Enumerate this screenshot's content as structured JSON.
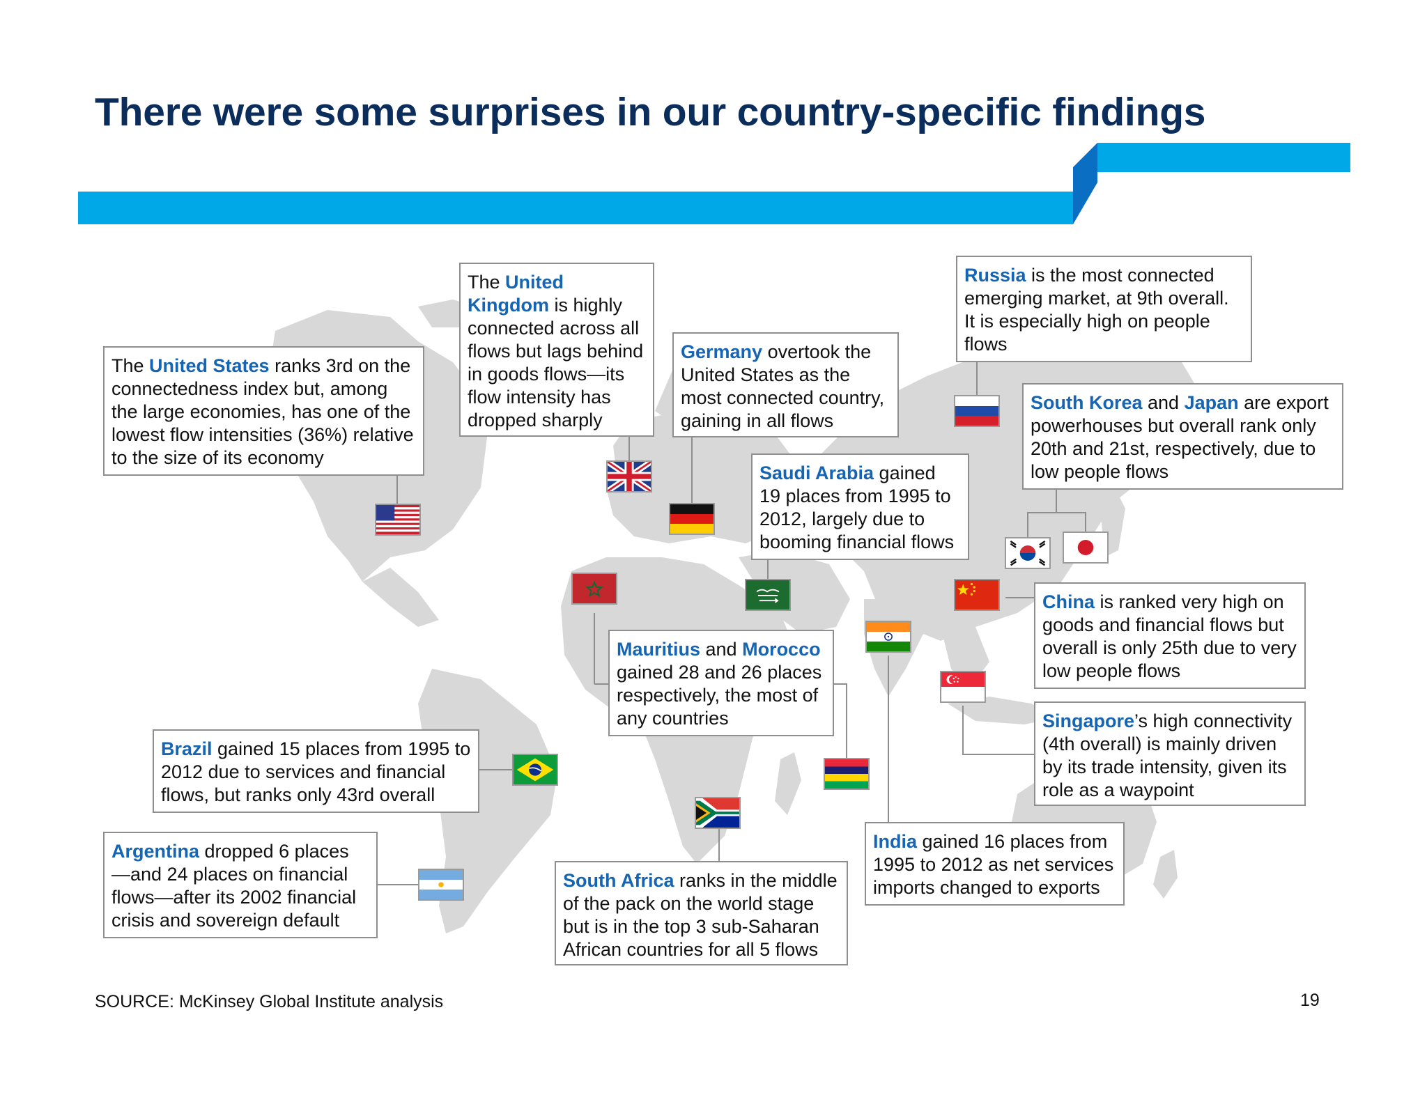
{
  "title": "There were some surprises in our country-specific findings",
  "colors": {
    "title": "#0b2d5c",
    "band": "#00a8e8",
    "band_shadow": "#0a6fc2",
    "highlight": "#1565b3",
    "map": "#d8d8d8"
  },
  "callouts": {
    "us": {
      "pre": "The ",
      "name": "United States",
      "post": " ranks 3rd on the connectedness index but, among the large economies, has one of the lowest flow intensities (36%) relative to the size of its economy"
    },
    "uk": {
      "pre": "The ",
      "name": "United Kingdom",
      "post": " is highly connected across all flows but lags behind in goods flows—its flow intensity has dropped sharply"
    },
    "germany": {
      "pre": "",
      "name": "Germany",
      "post": " overtook the United States as the most connected country, gaining in all flows"
    },
    "russia": {
      "pre": "",
      "name": "Russia",
      "post": " is the most connected emerging market, at 9th overall. It is especially high on people flows"
    },
    "korea_japan": {
      "name1": "South Korea",
      "mid": " and ",
      "name2": "Japan",
      "post": " are export powerhouses but overall rank only 20th and 21st, respectively, due to low people flows"
    },
    "saudi": {
      "pre": "",
      "name": "Saudi Arabia",
      "post": " gained 19 places from 1995 to 2012, largely due to booming financial flows"
    },
    "china": {
      "pre": "",
      "name": "China",
      "post": " is ranked very high on goods and financial flows but overall is only 25th due to very low people flows"
    },
    "mauritius_morocco": {
      "name1": "Mauritius",
      "mid": " and ",
      "name2": "Morocco",
      "post": " gained 28 and 26 places respectively, the most of any countries"
    },
    "singapore": {
      "pre": "",
      "name": "Singapore",
      "post": "’s high connectivity (4th overall) is mainly driven by its trade intensity, given its role as a waypoint"
    },
    "brazil": {
      "pre": "",
      "name": "Brazil",
      "post": " gained 15 places from 1995 to 2012 due to services and financial flows, but ranks only 43rd overall"
    },
    "argentina": {
      "pre": "",
      "name": "Argentina",
      "post": " dropped 6 places —and 24 places on financial flows—after its 2002 financial crisis and sovereign default"
    },
    "southafrica": {
      "pre": "",
      "name": "South Africa",
      "post": " ranks in the middle of the pack on the world stage but is in the top 3 sub-Saharan African countries for all 5 flows"
    },
    "india": {
      "pre": "",
      "name": "India",
      "post": " gained 16 places from 1995 to 2012 as net services imports changed to exports"
    }
  },
  "flags": [
    "flag-usa-icon",
    "flag-uk-icon",
    "flag-germany-icon",
    "flag-russia-icon",
    "flag-south-korea-icon",
    "flag-japan-icon",
    "flag-saudi-arabia-icon",
    "flag-morocco-icon",
    "flag-china-icon",
    "flag-india-icon",
    "flag-singapore-icon",
    "flag-mauritius-icon",
    "flag-brazil-icon",
    "flag-south-africa-icon",
    "flag-argentina-icon"
  ],
  "footer": {
    "source": "SOURCE: McKinsey Global Institute analysis",
    "page": "19"
  }
}
